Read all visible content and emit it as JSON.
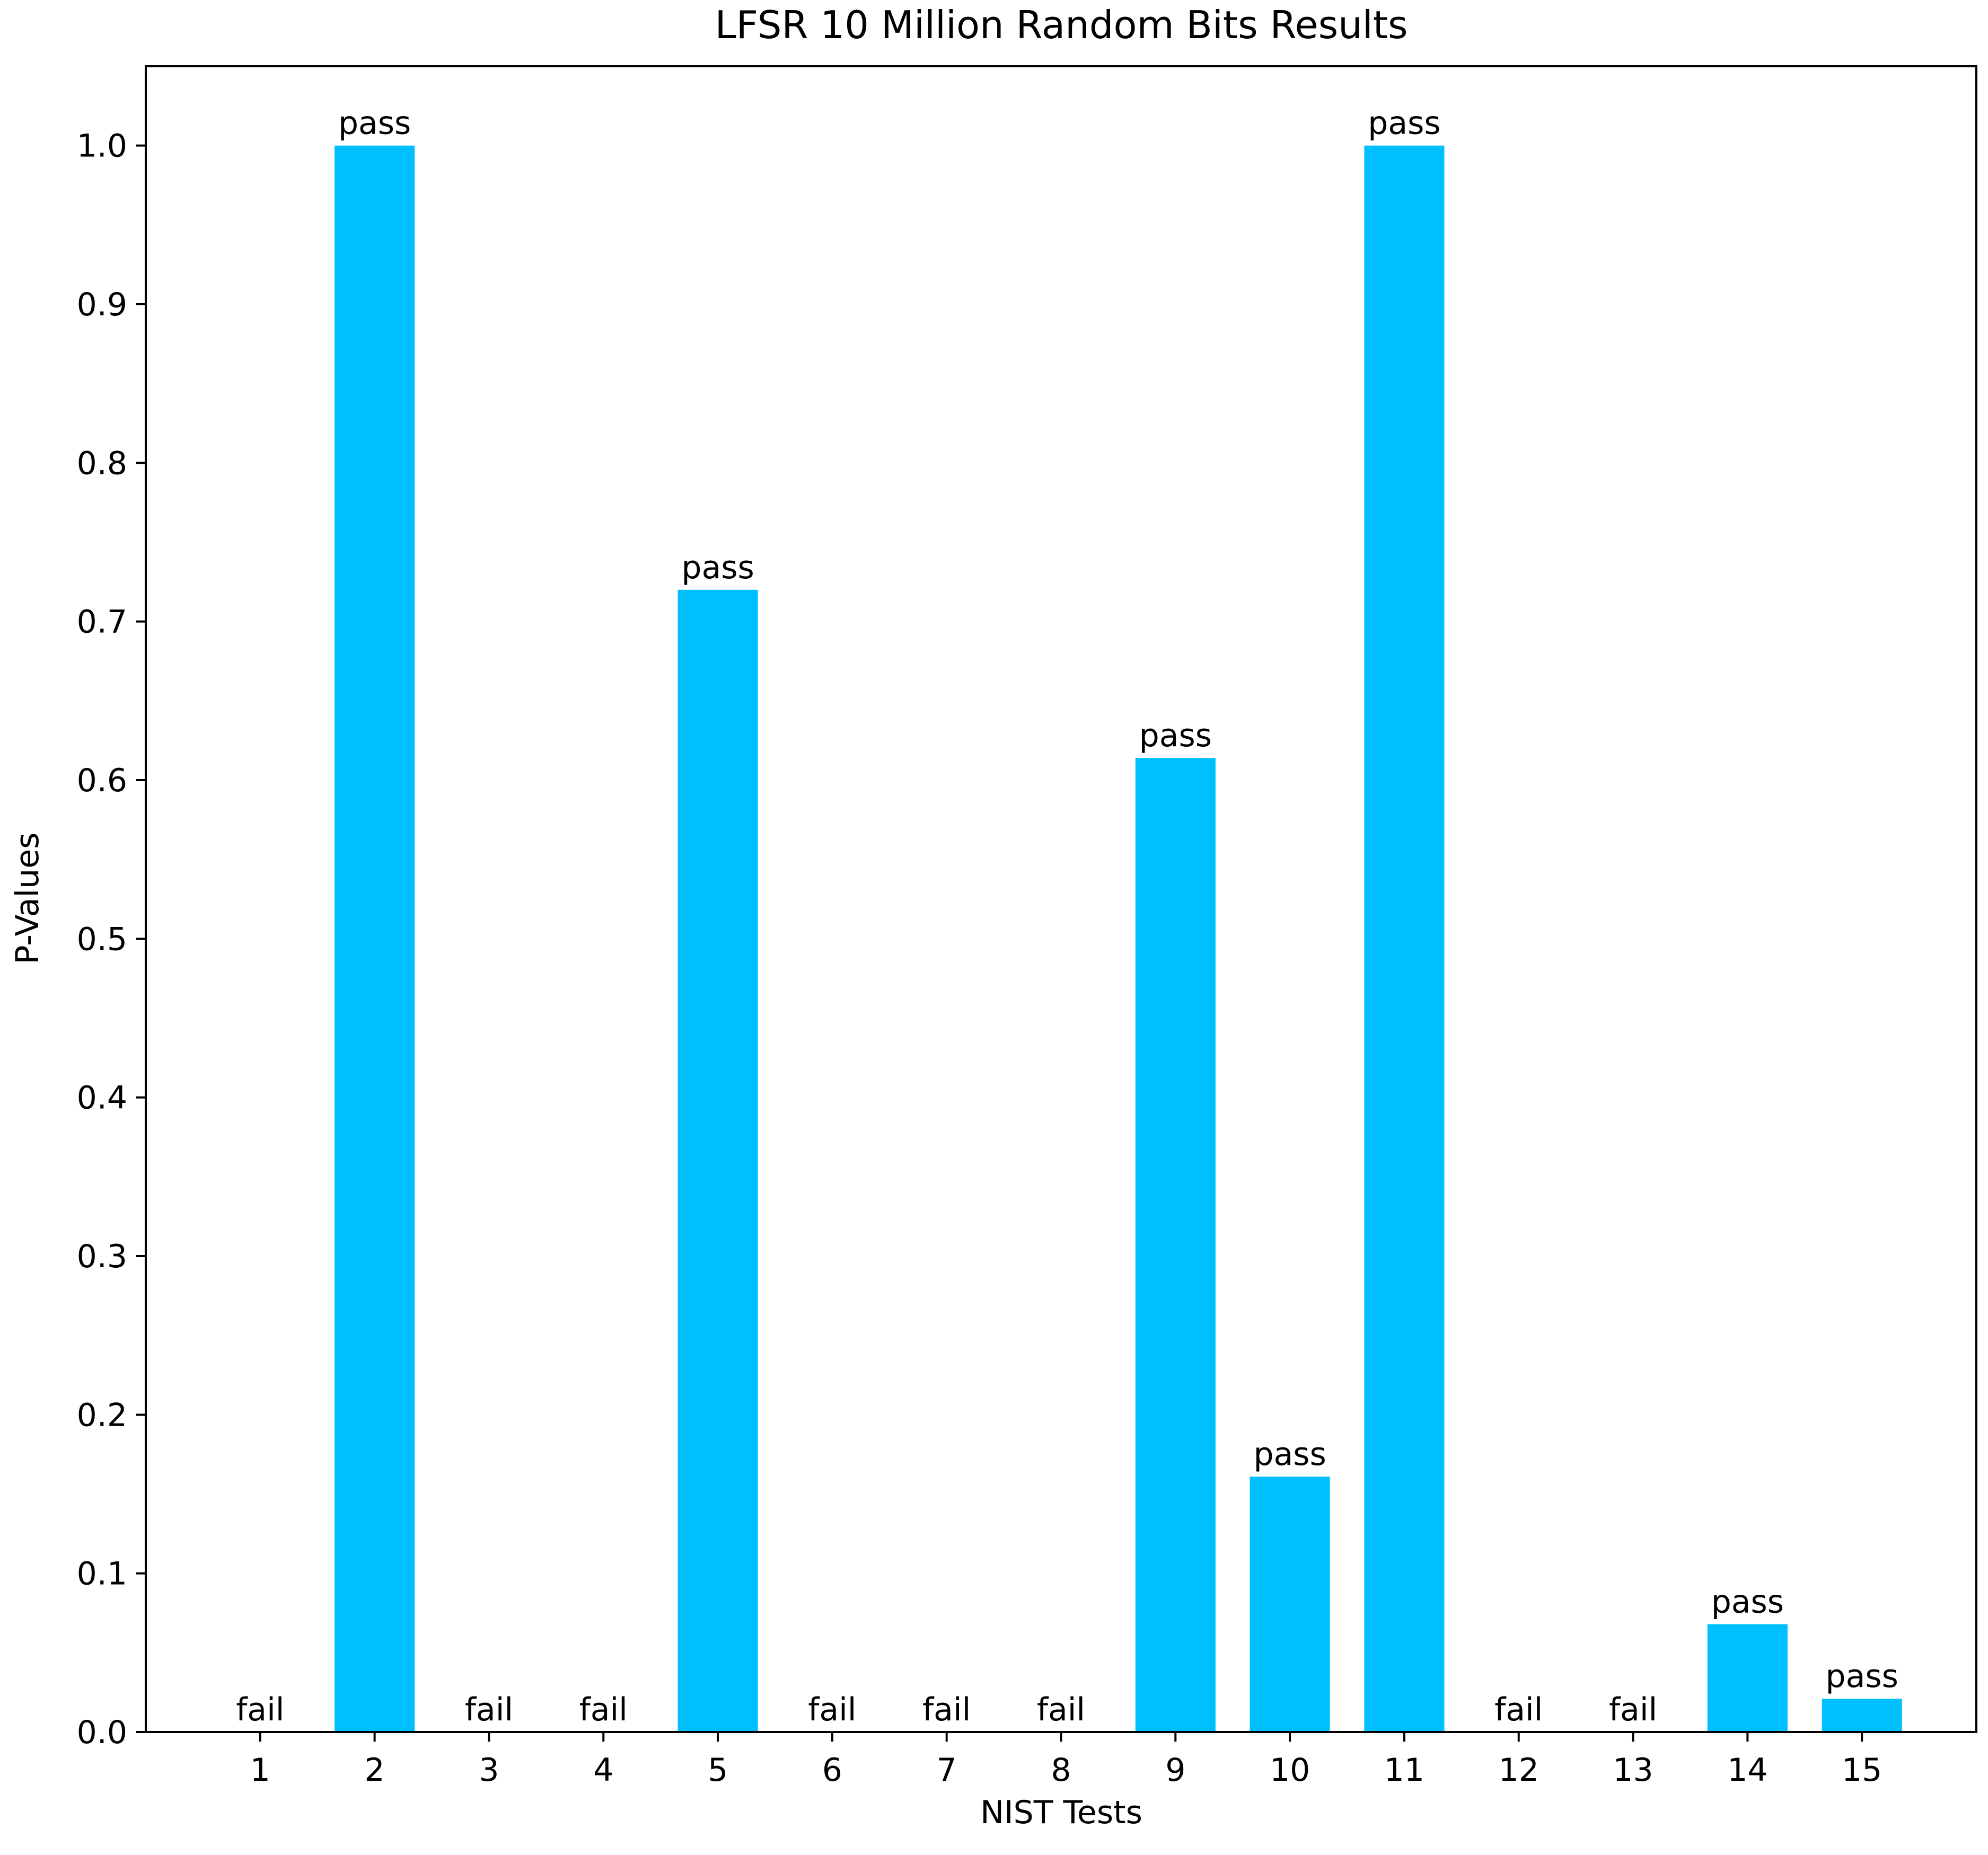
{
  "chart_data": {
    "type": "bar",
    "title": "LFSR 10 Million Random Bits Results",
    "xlabel": "NIST Tests",
    "ylabel": "P-Values",
    "categories": [
      "1",
      "2",
      "3",
      "4",
      "5",
      "6",
      "7",
      "8",
      "9",
      "10",
      "11",
      "12",
      "13",
      "14",
      "15"
    ],
    "values": [
      0.0,
      1.0,
      0.0,
      0.0,
      0.72,
      0.0,
      0.0,
      0.0,
      0.614,
      0.161,
      1.0,
      0.0,
      0.0,
      0.068,
      0.021
    ],
    "bar_labels": [
      "fail",
      "pass",
      "fail",
      "fail",
      "pass",
      "fail",
      "fail",
      "fail",
      "pass",
      "pass",
      "pass",
      "fail",
      "fail",
      "pass",
      "pass"
    ],
    "ylim": [
      0.0,
      1.05
    ],
    "yticks": [
      "0.0",
      "0.1",
      "0.2",
      "0.3",
      "0.4",
      "0.5",
      "0.6",
      "0.7",
      "0.8",
      "0.9",
      "1.0"
    ],
    "bar_color": "#00BFFF",
    "grid": false
  }
}
